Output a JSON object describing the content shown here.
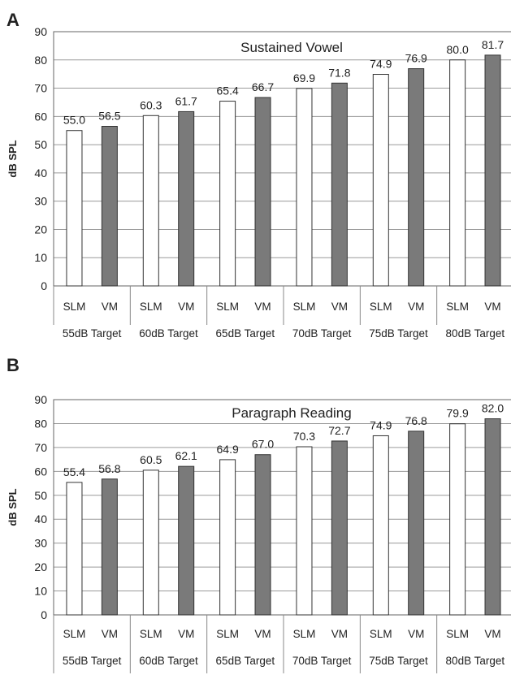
{
  "chart_data": [
    {
      "type": "bar",
      "panel_label": "A",
      "title": "Sustained Vowel",
      "ylabel": "dB SPL",
      "xlabel": "",
      "ylim": [
        0,
        90
      ],
      "yticks": [
        0,
        10,
        20,
        30,
        40,
        50,
        60,
        70,
        80,
        90
      ],
      "grid": true,
      "groups": [
        "55dB Target",
        "60dB Target",
        "65dB Target",
        "70dB Target",
        "75dB Target",
        "80dB Target"
      ],
      "bar_labels": [
        "SLM",
        "VM",
        "SLM",
        "VM",
        "SLM",
        "VM",
        "SLM",
        "VM",
        "SLM",
        "VM",
        "SLM",
        "VM"
      ],
      "values": [
        55.0,
        56.5,
        60.3,
        61.7,
        65.4,
        66.7,
        69.9,
        71.8,
        74.9,
        76.9,
        80.0,
        81.7
      ],
      "value_labels": [
        "55.0",
        "56.5",
        "60.3",
        "61.7",
        "65.4",
        "66.7",
        "69.9",
        "71.8",
        "74.9",
        "76.9",
        "80.0",
        "81.7"
      ],
      "colors": {
        "SLM": "#ffffff",
        "VM": "#7a7a7a"
      }
    },
    {
      "type": "bar",
      "panel_label": "B",
      "title": "Paragraph Reading",
      "ylabel": "dB SPL",
      "xlabel": "",
      "ylim": [
        0,
        90
      ],
      "yticks": [
        0,
        10,
        20,
        30,
        40,
        50,
        60,
        70,
        80,
        90
      ],
      "grid": true,
      "groups": [
        "55dB Target",
        "60dB Target",
        "65dB Target",
        "70dB Target",
        "75dB Target",
        "80dB Target"
      ],
      "bar_labels": [
        "SLM",
        "VM",
        "SLM",
        "VM",
        "SLM",
        "VM",
        "SLM",
        "VM",
        "SLM",
        "VM",
        "SLM",
        "VM"
      ],
      "values": [
        55.4,
        56.8,
        60.5,
        62.1,
        64.9,
        67.0,
        70.3,
        72.7,
        74.9,
        76.8,
        79.9,
        82.0
      ],
      "value_labels": [
        "55.4",
        "56.8",
        "60.5",
        "62.1",
        "64.9",
        "67.0",
        "70.3",
        "72.7",
        "74.9",
        "76.8",
        "79.9",
        "82.0"
      ],
      "colors": {
        "SLM": "#ffffff",
        "VM": "#7a7a7a"
      }
    }
  ]
}
